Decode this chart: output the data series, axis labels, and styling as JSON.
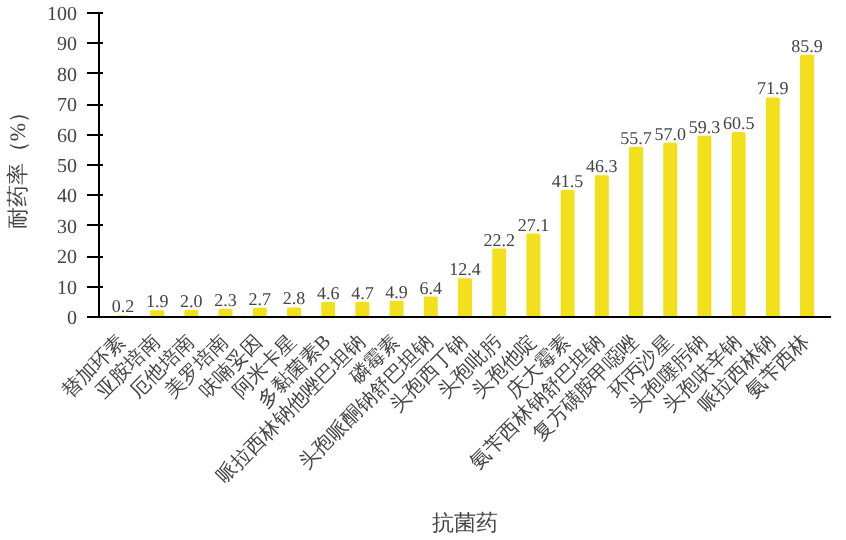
{
  "chart_data": {
    "type": "bar",
    "xlabel": "抗菌药",
    "ylabel": "耐药率（%）",
    "categories": [
      "替加环素",
      "亚胺培南",
      "厄他培南",
      "美罗培南",
      "呋喃妥因",
      "阿米卡星",
      "多黏菌素B",
      "哌拉西林钠他唑巴坦钠",
      "磷霉素",
      "头孢哌酮钠舒巴坦钠",
      "头孢西丁钠",
      "头孢吡肟",
      "头孢他啶",
      "庆大霉素",
      "氨苄西林钠舒巴坦钠",
      "复方磺胺甲噁唑",
      "环丙沙星",
      "头孢噻肟钠",
      "头孢呋辛钠",
      "哌拉西林钠",
      "氨苄西林"
    ],
    "values": [
      0.2,
      1.9,
      2.0,
      2.3,
      2.7,
      2.8,
      4.6,
      4.7,
      4.9,
      6.4,
      12.4,
      22.2,
      27.1,
      41.5,
      46.3,
      55.7,
      57.0,
      59.3,
      60.5,
      71.9,
      85.9
    ],
    "color": "#f2e01c",
    "ylim": [
      0,
      100
    ],
    "yticks": [
      0,
      10,
      20,
      30,
      40,
      50,
      60,
      70,
      80,
      90,
      100
    ],
    "value_labels": [
      "0.2",
      "1.9",
      "2.0",
      "2.3",
      "2.7",
      "2.8",
      "4.6",
      "4.7",
      "4.9",
      "6.4",
      "12.4",
      "22.2",
      "27.1",
      "41.5",
      "46.3",
      "55.7",
      "57.0",
      "59.3",
      "60.5",
      "71.9",
      "85.9"
    ]
  }
}
